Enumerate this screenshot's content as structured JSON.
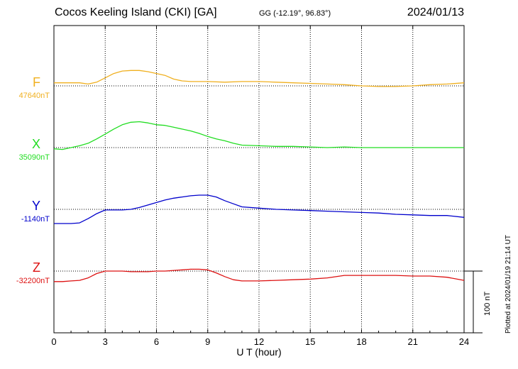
{
  "header": {
    "title": "Cocos Keeling Island (CKI)  [GA]",
    "coords": "GG (-12.19°,  96.83°)",
    "date": "2024/01/13"
  },
  "footer": {
    "plotted": "Plotted at 2024/01/19 21:14 UT",
    "scale": "100 nT"
  },
  "chart_data": {
    "type": "line",
    "xlabel": "U T (hour)",
    "xlim": [
      0,
      24
    ],
    "xticks": [
      0,
      3,
      6,
      9,
      12,
      15,
      18,
      21,
      24
    ],
    "grid": true,
    "scale_bar_nT": 100,
    "series": [
      {
        "name": "F",
        "baseline_label": "47640nT",
        "baseline": 47640,
        "color": "#f0b020",
        "x": [
          0,
          0.5,
          1,
          1.5,
          2,
          2.5,
          3,
          3.5,
          4,
          4.5,
          5,
          5.5,
          6,
          6.5,
          7,
          7.5,
          8,
          9,
          10,
          11,
          12,
          13,
          14,
          15,
          16,
          17,
          18,
          19,
          20,
          21,
          22,
          23,
          24
        ],
        "values": [
          47645,
          47645,
          47645,
          47645,
          47643,
          47646,
          47653,
          47660,
          47664,
          47665,
          47665,
          47663,
          47660,
          47657,
          47651,
          47648,
          47647,
          47647,
          47646,
          47647,
          47647,
          47646,
          47645,
          47644,
          47643,
          47642,
          47640,
          47639,
          47639,
          47640,
          47642,
          47643,
          47645
        ]
      },
      {
        "name": "X",
        "baseline_label": "35090nT",
        "baseline": 35090,
        "color": "#22dd22",
        "x": [
          0,
          0.5,
          1,
          1.5,
          2,
          2.5,
          3,
          3.5,
          4,
          4.5,
          5,
          5.5,
          6,
          6.5,
          7,
          7.5,
          8,
          8.5,
          9,
          9.5,
          10,
          10.5,
          11,
          12,
          13,
          14,
          15,
          16,
          17,
          18,
          19,
          20,
          21,
          22,
          23,
          24
        ],
        "values": [
          35088,
          35087,
          35090,
          35093,
          35097,
          35104,
          35112,
          35120,
          35127,
          35131,
          35132,
          35130,
          35127,
          35126,
          35123,
          35120,
          35117,
          35113,
          35108,
          35104,
          35101,
          35097,
          35094,
          35093,
          35092,
          35092,
          35091,
          35090,
          35091,
          35090,
          35090,
          35090,
          35090,
          35090,
          35090,
          35090
        ]
      },
      {
        "name": "Y",
        "baseline_label": "-1140nT",
        "baseline": -1140,
        "color": "#0000cc",
        "x": [
          0,
          0.5,
          1,
          1.5,
          2,
          2.5,
          3,
          3.5,
          4,
          4.5,
          5,
          5.5,
          6,
          6.5,
          7,
          7.5,
          8,
          8.5,
          9,
          9.5,
          10,
          10.5,
          11,
          12,
          13,
          14,
          15,
          16,
          17,
          18,
          19,
          20,
          21,
          22,
          23,
          24
        ],
        "values": [
          -1163,
          -1163,
          -1163,
          -1162,
          -1155,
          -1147,
          -1141,
          -1141,
          -1141,
          -1140,
          -1137,
          -1133,
          -1129,
          -1125,
          -1122,
          -1120,
          -1118,
          -1117,
          -1117,
          -1120,
          -1126,
          -1131,
          -1136,
          -1138,
          -1140,
          -1141,
          -1142,
          -1143,
          -1144,
          -1145,
          -1146,
          -1148,
          -1149,
          -1150,
          -1150,
          -1153
        ]
      },
      {
        "name": "Z",
        "baseline_label": "-32200nT",
        "baseline": -32200,
        "color": "#dd1111",
        "x": [
          0,
          0.5,
          1,
          1.5,
          2,
          2.5,
          3,
          3.5,
          4,
          4.5,
          5,
          5.5,
          6,
          6.5,
          7,
          7.5,
          8,
          8.5,
          9,
          9.5,
          10,
          10.5,
          11,
          12,
          13,
          14,
          15,
          16,
          17,
          18,
          19,
          20,
          21,
          22,
          23,
          24
        ],
        "values": [
          -32217,
          -32217,
          -32216,
          -32215,
          -32211,
          -32204,
          -32200,
          -32200,
          -32200,
          -32201,
          -32201,
          -32201,
          -32200,
          -32200,
          -32199,
          -32198,
          -32197,
          -32197,
          -32198,
          -32203,
          -32209,
          -32214,
          -32216,
          -32216,
          -32215,
          -32214,
          -32213,
          -32211,
          -32207,
          -32207,
          -32207,
          -32207,
          -32208,
          -32208,
          -32210,
          -32215
        ]
      }
    ]
  }
}
